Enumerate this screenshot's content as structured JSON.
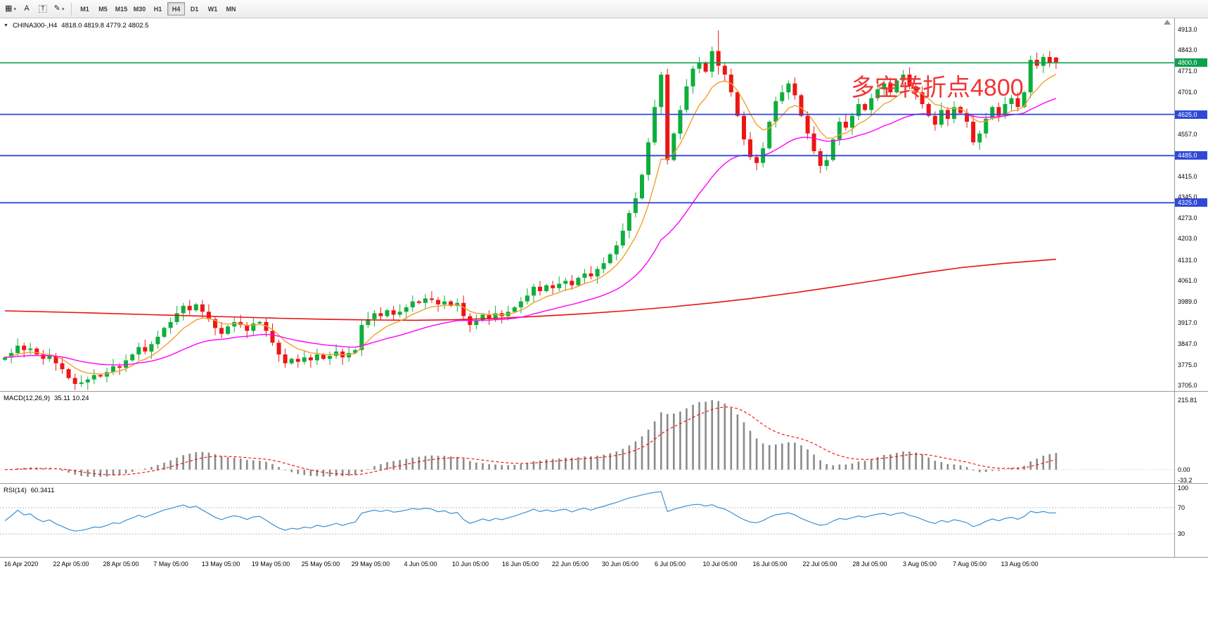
{
  "toolbar": {
    "tools": [
      {
        "id": "chart-type",
        "glyph": "▦",
        "dropdown": true,
        "boxed": false
      },
      {
        "id": "text-label",
        "glyph": "A",
        "dropdown": false,
        "boxed": false
      },
      {
        "id": "text-frame",
        "glyph": "T",
        "dropdown": false,
        "boxed": true
      },
      {
        "id": "draw-shapes",
        "glyph": "✎",
        "dropdown": true,
        "boxed": false
      }
    ],
    "timeframes": [
      "M1",
      "M5",
      "M15",
      "M30",
      "H1",
      "H4",
      "D1",
      "W1",
      "MN"
    ],
    "active_timeframe": "H4"
  },
  "icons": {
    "chart_menu_arrow": "▼",
    "dropdown_caret": "▾"
  },
  "chart": {
    "symbol": "CHINA300-,H4",
    "ohlc": "4818.0 4819.8 4779.2 4802.5",
    "annotation": "多空转折点4800",
    "annotation_color": "#f23434"
  },
  "chart_data": {
    "type": "candlestick",
    "main": {
      "scale_top_price": 4913.0,
      "scale_bottom_price": 3705.0,
      "axis_labels": [
        4913.0,
        4843.0,
        4771.0,
        4701.0,
        4557.0,
        4415.0,
        4345.0,
        4273.0,
        4203.0,
        4131.0,
        4061.0,
        3989.0,
        3917.0,
        3847.0,
        3775.0,
        3705.0
      ],
      "hlines": [
        {
          "price": 4800.0,
          "label": "4800.0",
          "color": "#0aa14c",
          "width": 1.6
        },
        {
          "price": 4625.0,
          "label": "4625.0",
          "color": "#2f49d6",
          "width": 1.8
        },
        {
          "price": 4485.0,
          "label": "4485.0",
          "color": "#2f49d6",
          "width": 1.8
        },
        {
          "price": 4325.0,
          "label": "4325.0",
          "color": "#2f49d6",
          "width": 1.8
        }
      ],
      "closes": [
        3800,
        3815,
        3840,
        3825,
        3830,
        3810,
        3795,
        3805,
        3780,
        3760,
        3730,
        3710,
        3715,
        3725,
        3740,
        3735,
        3750,
        3770,
        3765,
        3790,
        3810,
        3835,
        3820,
        3845,
        3870,
        3900,
        3920,
        3950,
        3975,
        3960,
        3980,
        3955,
        3930,
        3900,
        3880,
        3905,
        3920,
        3910,
        3890,
        3915,
        3920,
        3890,
        3850,
        3810,
        3780,
        3795,
        3785,
        3800,
        3790,
        3810,
        3795,
        3805,
        3820,
        3800,
        3815,
        3825,
        3910,
        3930,
        3950,
        3940,
        3960,
        3945,
        3955,
        3970,
        3990,
        3985,
        4000,
        3995,
        3980,
        3990,
        3975,
        3985,
        3940,
        3910,
        3925,
        3945,
        3930,
        3950,
        3940,
        3955,
        3970,
        3990,
        4010,
        4040,
        4025,
        4045,
        4035,
        4050,
        4060,
        4045,
        4070,
        4085,
        4075,
        4100,
        4120,
        4150,
        4180,
        4230,
        4290,
        4340,
        4420,
        4530,
        4650,
        4760,
        4470,
        4560,
        4640,
        4720,
        4780,
        4800,
        4770,
        4840,
        4790,
        4760,
        4700,
        4620,
        4540,
        4480,
        4460,
        4510,
        4600,
        4670,
        4700,
        4730,
        4690,
        4620,
        4560,
        4500,
        4450,
        4470,
        4540,
        4600,
        4580,
        4620,
        4660,
        4640,
        4680,
        4710,
        4730,
        4700,
        4740,
        4760,
        4720,
        4700,
        4660,
        4620,
        4590,
        4640,
        4610,
        4650,
        4630,
        4600,
        4530,
        4560,
        4610,
        4650,
        4620,
        4660,
        4680,
        4650,
        4700,
        4810,
        4790,
        4820,
        4800,
        4802.5
      ],
      "last_candle": {
        "open": 4818.0,
        "high": 4819.8,
        "low": 4779.2,
        "close": 4802.5
      },
      "wick_overrides": {
        "112": {
          "high": 4910,
          "low": 4760
        }
      },
      "slow_ma_points": [
        [
          0,
          3958
        ],
        [
          0.07,
          3952
        ],
        [
          0.14,
          3945
        ],
        [
          0.2,
          3939
        ],
        [
          0.26,
          3933
        ],
        [
          0.31,
          3929
        ],
        [
          0.35,
          3927
        ],
        [
          0.39,
          3926
        ],
        [
          0.43,
          3928
        ],
        [
          0.47,
          3933
        ],
        [
          0.51,
          3940
        ],
        [
          0.55,
          3948
        ],
        [
          0.59,
          3958
        ],
        [
          0.63,
          3970
        ],
        [
          0.67,
          3984
        ],
        [
          0.71,
          4000
        ],
        [
          0.75,
          4019
        ],
        [
          0.79,
          4040
        ],
        [
          0.83,
          4062
        ],
        [
          0.87,
          4085
        ],
        [
          0.91,
          4105
        ],
        [
          0.95,
          4119
        ],
        [
          1,
          4133
        ]
      ],
      "up_color": "#0fae3c",
      "down_color": "#ee1515",
      "ma_fast_color": "#f0a030",
      "ma_mid_color": "#ff00ff",
      "ma_slow_color": "#e81010"
    },
    "macd": {
      "name": "MACD(12,26,9)",
      "values": "35.11 10.24",
      "max": 215.81,
      "min": -33.2,
      "axis_labels": [
        {
          "text": "215.81",
          "v": 215.81
        },
        {
          "text": "0.00",
          "v": 0
        },
        {
          "text": "-33.2",
          "v": -33.2
        }
      ],
      "histogram_color": "#8a8a8a",
      "signal_color": "#ff0000"
    },
    "rsi": {
      "name": "RSI(14)",
      "value": "60.3411",
      "axis_labels": [
        {
          "text": "100",
          "v": 100
        },
        {
          "text": "70",
          "v": 70
        },
        {
          "text": "30",
          "v": 30
        }
      ],
      "levels": [
        70,
        30
      ],
      "line_color": "#3a91d4"
    },
    "time_labels": [
      "16 Apr 2020",
      "22 Apr 05:00",
      "28 Apr 05:00",
      "7 May 05:00",
      "13 May 05:00",
      "19 May 05:00",
      "25 May 05:00",
      "29 May 05:00",
      "4 Jun 05:00",
      "10 Jun 05:00",
      "16 Jun 05:00",
      "22 Jun 05:00",
      "30 Jun 05:00",
      "6 Jul 05:00",
      "10 Jul 05:00",
      "16 Jul 05:00",
      "22 Jul 05:00",
      "28 Jul 05:00",
      "3 Aug 05:00",
      "7 Aug 05:00",
      "13 Aug 05:00"
    ]
  },
  "colors": {
    "badge_text": "#ffffff",
    "grid": "#c8c8c8",
    "panel_border": "#9a9a9a"
  }
}
